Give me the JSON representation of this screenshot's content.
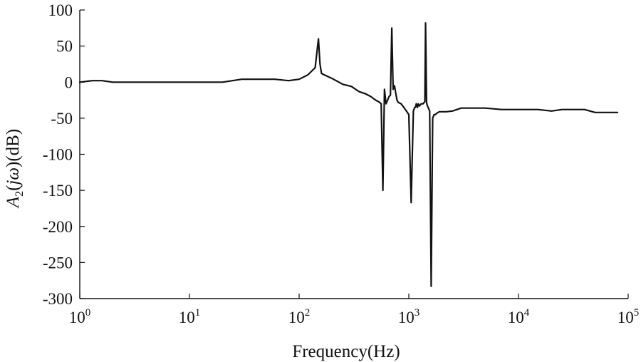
{
  "chart_data": {
    "type": "line",
    "title": "",
    "xlabel": "Frequency(Hz)",
    "ylabel": "A2(jω)(dB)",
    "ylabel_parts": {
      "base": "A",
      "sub": "2",
      "open": "(",
      "var": "jω",
      "close": ")(dB)"
    },
    "xscale": "log",
    "xlim": [
      1,
      100000
    ],
    "ylim": [
      -300,
      100
    ],
    "grid": false,
    "legend": "none",
    "line_color": "#111111",
    "xticks": [
      {
        "value": 1,
        "base": "10",
        "exp": "0"
      },
      {
        "value": 10,
        "base": "10",
        "exp": "1"
      },
      {
        "value": 100,
        "base": "10",
        "exp": "2"
      },
      {
        "value": 1000,
        "base": "10",
        "exp": "3"
      },
      {
        "value": 10000,
        "base": "10",
        "exp": "4"
      },
      {
        "value": 100000,
        "base": "10",
        "exp": "5"
      }
    ],
    "yticks": [
      {
        "value": 100,
        "label": "100"
      },
      {
        "value": 50,
        "label": "50"
      },
      {
        "value": 0,
        "label": "0"
      },
      {
        "value": -50,
        "label": "-50"
      },
      {
        "value": -100,
        "label": "-100"
      },
      {
        "value": -150,
        "label": "-150"
      },
      {
        "value": -200,
        "label": "-200"
      },
      {
        "value": -250,
        "label": "-250"
      },
      {
        "value": -300,
        "label": "-300"
      }
    ],
    "series": [
      {
        "x": [
          1,
          1.3,
          1.6,
          2,
          3,
          5,
          10,
          20,
          30,
          40,
          60,
          80,
          100,
          120,
          140,
          150,
          155,
          160,
          170,
          200,
          250,
          300,
          350,
          400,
          450,
          500,
          530,
          560,
          580,
          600,
          620,
          640,
          660,
          680,
          700,
          720,
          740,
          760,
          780,
          800,
          850,
          900,
          950,
          1000,
          1050,
          1100,
          1130,
          1150,
          1170,
          1200,
          1220,
          1250,
          1300,
          1350,
          1400,
          1420,
          1450,
          1460,
          1480,
          1500,
          1550,
          1600,
          1650,
          1700,
          1750,
          1800,
          1850,
          1900,
          2000,
          2200,
          2500,
          3000,
          4000,
          5000,
          7000,
          10000,
          15000,
          20000,
          25000,
          30000,
          40000,
          50000,
          60000,
          80000
        ],
        "y": [
          0,
          2,
          2,
          0,
          0,
          0,
          0,
          0,
          4,
          4,
          4,
          2,
          4,
          10,
          20,
          60,
          25,
          12,
          10,
          5,
          -3,
          -6,
          -13,
          -16,
          -20,
          -25,
          -27,
          -30,
          -150,
          -10,
          -30,
          -25,
          -20,
          -18,
          75,
          -10,
          -5,
          -15,
          -25,
          -28,
          -30,
          -35,
          -40,
          -45,
          -167,
          -40,
          -35,
          -35,
          -30,
          -35,
          -30,
          -33,
          -30,
          -30,
          -27,
          82,
          -27,
          -30,
          -33,
          -35,
          -40,
          -283,
          -50,
          -45,
          -45,
          -43,
          -42,
          -41,
          -41,
          -41,
          -40,
          -36,
          -36,
          -36,
          -38,
          -38,
          -38,
          -40,
          -38,
          -38,
          -38,
          -42,
          -42,
          -42
        ]
      }
    ]
  }
}
